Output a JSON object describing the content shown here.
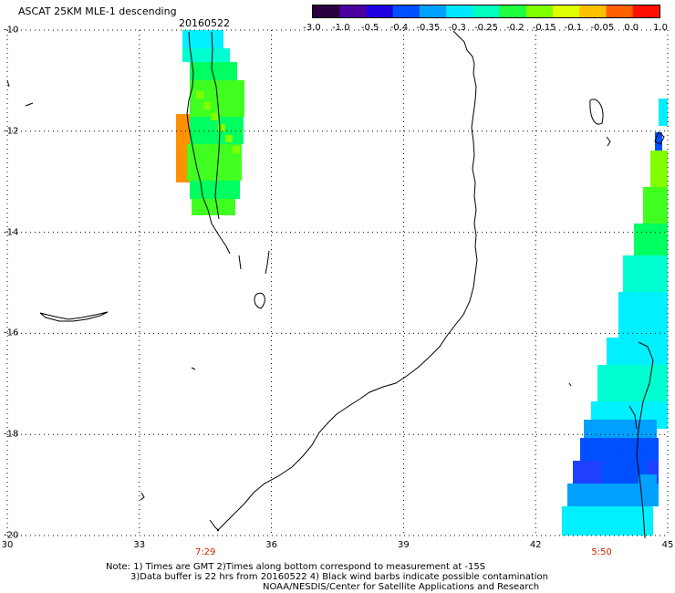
{
  "header": {
    "title": "ASCAT 25KM MLE-1 descending",
    "date": "20160522"
  },
  "colorbar": {
    "labels": [
      "-3.0",
      "-1.0",
      "-0.5",
      "-0.4",
      "-0.35",
      "-0.3",
      "-0.25",
      "-0.2",
      "-0.15",
      "-0.1",
      "-0.05",
      "0.0",
      "1.0"
    ],
    "colors": [
      "#2a0040",
      "#4b00a0",
      "#2000e0",
      "#0050ff",
      "#00a0ff",
      "#00e8ff",
      "#00ffc0",
      "#20ff40",
      "#80ff00",
      "#e0ff00",
      "#ffc000",
      "#ff6000",
      "#ff1000"
    ]
  },
  "axes": {
    "y_labels": [
      "-10",
      "-12",
      "-14",
      "-16",
      "-18",
      "-20"
    ],
    "x_labels": [
      "30",
      "33",
      "36",
      "39",
      "42",
      "45"
    ],
    "lat_range": [
      -20,
      -10
    ],
    "lon_range": [
      30,
      45
    ]
  },
  "pass_times": [
    {
      "label": "7:29",
      "lon": 34.5
    },
    {
      "label": "5:50",
      "lon": 43.5
    }
  ],
  "notes": {
    "line1": "Note: 1) Times are GMT 2)Times along bottom correspond to measurement at -15S",
    "line2": "3)Data buffer is 22 hrs from 20160522 4) Black wind barbs indicate possible contamination",
    "line3": "NOAA/NESDIS/Center for Satellite Applications and Research"
  },
  "legend_colors": {
    "grid": "#000000",
    "coast": "#000000"
  }
}
